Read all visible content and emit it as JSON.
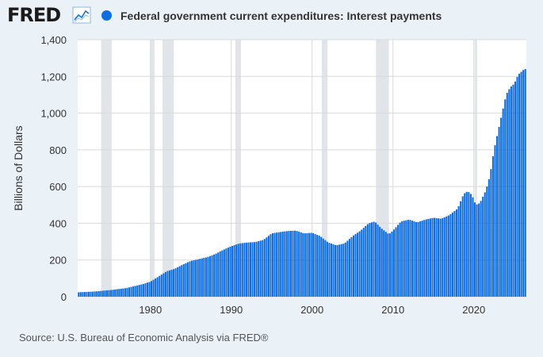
{
  "header": {
    "logo_text": "FRED",
    "logo_icon": "line-chart-icon",
    "legend_label": "Federal government current expenditures: Interest payments"
  },
  "source": "Source: U.S. Bureau of Economic Analysis via FRED®",
  "colors": {
    "bar": "#0e6ee0",
    "background": "#eaf1f7",
    "plot_bg": "#ffffff",
    "recession": "#e1e5e9",
    "grid": "#d9d9d9"
  },
  "chart_data": {
    "type": "bar",
    "title": "Federal government current expenditures: Interest payments",
    "ylabel": "Billions of Dollars",
    "xlabel": "",
    "ylim": [
      0,
      1400
    ],
    "yticks": [
      0,
      200,
      400,
      600,
      800,
      1000,
      1200,
      1400
    ],
    "ytick_labels": [
      "0",
      "200",
      "400",
      "600",
      "800",
      "1,000",
      "1,200",
      "1,400"
    ],
    "xlim": [
      1971.0,
      2026.5
    ],
    "xticks": [
      1980,
      1990,
      2000,
      2010,
      2020
    ],
    "xtick_labels": [
      "1980",
      "1990",
      "2000",
      "2010",
      "2020"
    ],
    "grid": true,
    "frequency": "quarterly",
    "start": 1971.0,
    "series": [
      {
        "name": "Federal government current expenditures: Interest payments",
        "anchors": [
          [
            1971.0,
            24
          ],
          [
            1973.0,
            28
          ],
          [
            1975.0,
            36
          ],
          [
            1977.0,
            47
          ],
          [
            1979.0,
            68
          ],
          [
            1980.0,
            82
          ],
          [
            1981.0,
            110
          ],
          [
            1982.0,
            138
          ],
          [
            1983.0,
            152
          ],
          [
            1984.0,
            175
          ],
          [
            1985.0,
            195
          ],
          [
            1986.0,
            205
          ],
          [
            1987.0,
            215
          ],
          [
            1988.0,
            232
          ],
          [
            1989.0,
            255
          ],
          [
            1990.0,
            275
          ],
          [
            1991.0,
            290
          ],
          [
            1992.0,
            295
          ],
          [
            1993.0,
            298
          ],
          [
            1994.0,
            310
          ],
          [
            1995.0,
            345
          ],
          [
            1996.0,
            352
          ],
          [
            1997.0,
            358
          ],
          [
            1998.0,
            360
          ],
          [
            1999.0,
            345
          ],
          [
            2000.0,
            348
          ],
          [
            2001.0,
            330
          ],
          [
            2002.0,
            295
          ],
          [
            2003.0,
            280
          ],
          [
            2004.0,
            290
          ],
          [
            2005.0,
            330
          ],
          [
            2006.0,
            360
          ],
          [
            2007.0,
            400
          ],
          [
            2007.75,
            410
          ],
          [
            2008.5,
            375
          ],
          [
            2009.5,
            340
          ],
          [
            2010.0,
            360
          ],
          [
            2011.0,
            410
          ],
          [
            2012.0,
            420
          ],
          [
            2013.0,
            405
          ],
          [
            2014.0,
            420
          ],
          [
            2015.0,
            430
          ],
          [
            2016.0,
            425
          ],
          [
            2017.0,
            445
          ],
          [
            2018.0,
            480
          ],
          [
            2018.75,
            560
          ],
          [
            2019.25,
            575
          ],
          [
            2019.75,
            555
          ],
          [
            2020.25,
            500
          ],
          [
            2020.75,
            510
          ],
          [
            2021.5,
            580
          ],
          [
            2022.0,
            660
          ],
          [
            2022.5,
            800
          ],
          [
            2023.0,
            900
          ],
          [
            2023.5,
            1000
          ],
          [
            2024.0,
            1100
          ],
          [
            2024.5,
            1140
          ],
          [
            2025.0,
            1160
          ],
          [
            2025.5,
            1210
          ],
          [
            2026.25,
            1240
          ]
        ]
      }
    ],
    "recessions": [
      [
        1973.9,
        1975.2
      ],
      [
        1980.0,
        1980.5
      ],
      [
        1981.5,
        1982.9
      ],
      [
        1990.5,
        1991.2
      ],
      [
        2001.2,
        2001.9
      ],
      [
        2007.9,
        2009.5
      ],
      [
        2020.1,
        2020.4
      ]
    ]
  }
}
